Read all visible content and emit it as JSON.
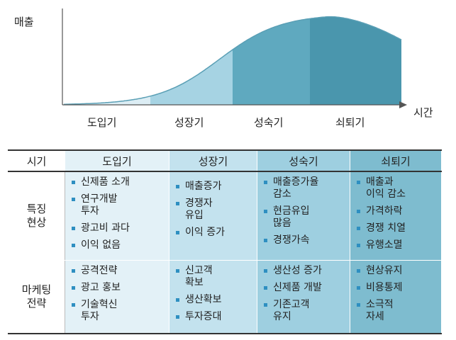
{
  "curve": {
    "y_axis_label": "매출",
    "x_axis_label": "시간",
    "stages": [
      "도입기",
      "성장기",
      "성숙기",
      "쇠퇴기"
    ],
    "stage_colors": [
      "#dcedf4",
      "#a6d3e3",
      "#5fa9bf",
      "#4a96ad"
    ]
  },
  "table": {
    "header": [
      "시기",
      "도입기",
      "성장기",
      "성숙기",
      "쇠퇴기"
    ],
    "rows": [
      {
        "label": "특징\n현상",
        "cells": [
          [
            "신제품 소개",
            "연구개발\n투자",
            "광고비 과다",
            "이익 없음"
          ],
          [
            "매출증가",
            "경쟁자\n유입",
            "이익 증가"
          ],
          [
            "매출증가율\n감소",
            "현금유입\n많음",
            "경쟁가속"
          ],
          [
            "매출과\n이익 감소",
            "가격하락",
            "경쟁 치열",
            "유행소멸"
          ]
        ]
      },
      {
        "label": "마케팅\n전략",
        "cells": [
          [
            "공격전략",
            "광고 홍보",
            "기술혁신\n투자"
          ],
          [
            "신고객\n확보",
            "생산확보",
            "투자증대"
          ],
          [
            "생산성 증가",
            "신제품 개발",
            "기존고객\n유지"
          ],
          [
            "현상유지",
            "비용통제",
            "소극적\n자세"
          ]
        ]
      }
    ]
  }
}
